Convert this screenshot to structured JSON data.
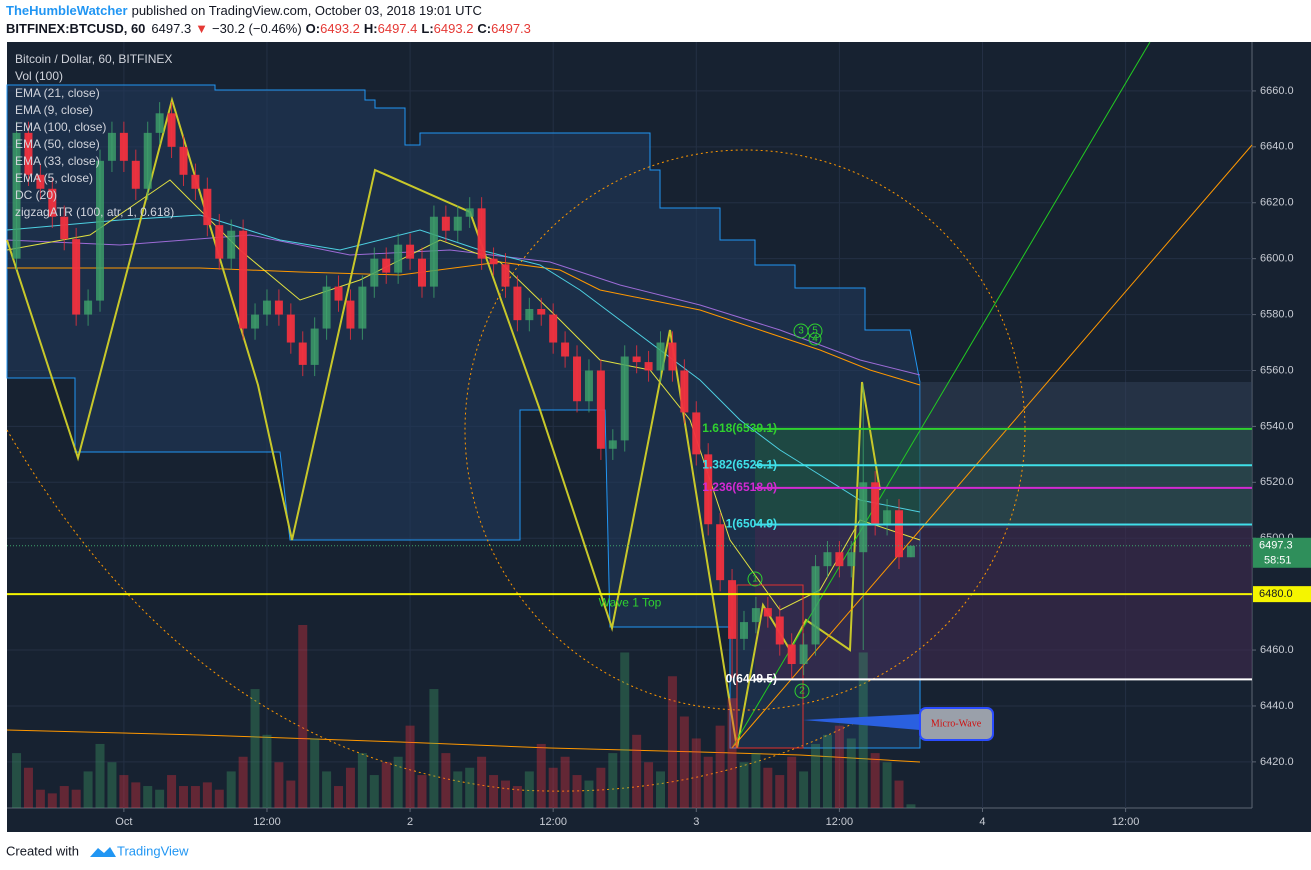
{
  "header": {
    "author": "TheHumbleWatcher",
    "published": "published on TradingView.com, October 03, 2018 19:01 UTC",
    "symbol": "BITFINEX:BTCUSD, 60",
    "last": 6497.3,
    "arrow": "▼",
    "change": "−30.2 (−0.46%)",
    "quote": [
      {
        "key": "O:",
        "value": 6493.2
      },
      {
        "key": "H:",
        "value": 6497.4
      },
      {
        "key": "L:",
        "value": 6493.2
      },
      {
        "key": "C:",
        "value": 6497.3
      }
    ]
  },
  "legend": [
    "Bitcoin / Dollar, 60, BITFINEX",
    "Vol (100)",
    "EMA (21, close)",
    "EMA (9, close)",
    "EMA (100, close)",
    "EMA (50, close)",
    "EMA (33, close)",
    "EMA (5, close)",
    "DC (20)",
    "zigzagATR (100, atr, 1, 0.618)"
  ],
  "chart_data": {
    "type": "candlestick",
    "up_color": "#3fa36b",
    "down_color": "#f0313f",
    "grid": true,
    "xlim": [
      -9.8,
      94.6
    ],
    "ylim": [
      6403.5,
      6677.5
    ],
    "xticks": [
      {
        "value": 0,
        "label": "Oct"
      },
      {
        "value": 12,
        "label": "12:00"
      },
      {
        "value": 24,
        "label": "2"
      },
      {
        "value": 36,
        "label": "12:00"
      },
      {
        "value": 48,
        "label": "3"
      },
      {
        "value": 60,
        "label": "12:00"
      },
      {
        "value": 72,
        "label": "4"
      },
      {
        "value": 84,
        "label": "12:00"
      }
    ],
    "yticks": [
      {
        "value": 6420,
        "label": "6420.0"
      },
      {
        "value": 6440,
        "label": "6440.0"
      },
      {
        "value": 6460,
        "label": "6460.0"
      },
      {
        "value": 6480,
        "label": "6480.0"
      },
      {
        "value": 6500,
        "label": "6500.0"
      },
      {
        "value": 6520,
        "label": "6520.0"
      },
      {
        "value": 6540,
        "label": "6540.0"
      },
      {
        "value": 6560,
        "label": "6560.0"
      },
      {
        "value": 6580,
        "label": "6580.0"
      },
      {
        "value": 6600,
        "label": "6600.0"
      },
      {
        "value": 6620,
        "label": "6620.0"
      },
      {
        "value": 6640,
        "label": "6640.0"
      },
      {
        "value": 6660,
        "label": "6660.0"
      }
    ],
    "candles": {
      "x": [
        -9,
        -8,
        -7,
        -6,
        -5,
        -4,
        -3,
        -2,
        -1,
        0,
        1,
        2,
        3,
        4,
        5,
        6,
        7,
        8,
        9,
        10,
        11,
        12,
        13,
        14,
        15,
        16,
        17,
        18,
        19,
        20,
        21,
        22,
        23,
        24,
        25,
        26,
        27,
        28,
        29,
        30,
        31,
        32,
        33,
        34,
        35,
        36,
        37,
        38,
        39,
        40,
        41,
        42,
        43,
        44,
        45,
        46,
        47,
        48,
        49,
        50,
        51,
        52,
        53,
        54,
        55,
        56,
        57,
        58,
        59,
        60,
        61,
        62,
        63,
        64,
        65,
        66
      ],
      "open": [
        6600,
        6645,
        6630,
        6625,
        6615,
        6607,
        6580,
        6585,
        6635,
        6645,
        6635,
        6625,
        6645,
        6652,
        6640,
        6630,
        6625,
        6612,
        6600,
        6610,
        6575,
        6580,
        6585,
        6580,
        6570,
        6562,
        6575,
        6590,
        6585,
        6575,
        6590,
        6600,
        6595,
        6605,
        6600,
        6590,
        6615,
        6610,
        6615,
        6618,
        6600,
        6598,
        6590,
        6578,
        6582,
        6580,
        6570,
        6565,
        6549,
        6560,
        6532,
        6535,
        6565,
        6563,
        6560,
        6570,
        6560,
        6545,
        6530,
        6505,
        6485,
        6464,
        6470,
        6475,
        6472,
        6462,
        6455,
        6462,
        6490,
        6495,
        6490,
        6495,
        6520,
        6505,
        6510,
        6493.2
      ],
      "high": [
        6649,
        6649,
        6634,
        6629,
        6619,
        6611,
        6589,
        6639,
        6649,
        6649,
        6639,
        6649,
        6656,
        6656,
        6644,
        6634,
        6629,
        6616,
        6614,
        6614,
        6584,
        6589,
        6589,
        6584,
        6574,
        6579,
        6594,
        6594,
        6589,
        6594,
        6604,
        6604,
        6609,
        6609,
        6604,
        6619,
        6619,
        6619,
        6622,
        6622,
        6604,
        6602,
        6594,
        6586,
        6586,
        6584,
        6574,
        6569,
        6564,
        6564,
        6539,
        6569,
        6569,
        6567,
        6574,
        6574,
        6564,
        6549,
        6534,
        6509,
        6489,
        6474,
        6479,
        6479,
        6476,
        6466,
        6466,
        6494,
        6499,
        6499,
        6499,
        6555,
        6524,
        6514,
        6514,
        6497.4
      ],
      "low": [
        6596,
        6626,
        6621,
        6611,
        6603,
        6576,
        6576,
        6581,
        6631,
        6631,
        6621,
        6621,
        6641,
        6636,
        6626,
        6621,
        6608,
        6596,
        6596,
        6571,
        6571,
        6576,
        6576,
        6566,
        6558,
        6558,
        6571,
        6581,
        6571,
        6571,
        6586,
        6591,
        6591,
        6596,
        6586,
        6586,
        6606,
        6606,
        6611,
        6596,
        6594,
        6586,
        6574,
        6574,
        6576,
        6566,
        6561,
        6545,
        6545,
        6528,
        6528,
        6531,
        6559,
        6556,
        6556,
        6556,
        6541,
        6526,
        6501,
        6481,
        6450,
        6460,
        6466,
        6468,
        6458,
        6450,
        6451,
        6458,
        6486,
        6486,
        6486,
        6460,
        6501,
        6501,
        6489,
        6493.2
      ],
      "close": [
        6645,
        6630,
        6625,
        6615,
        6607,
        6580,
        6585,
        6635,
        6645,
        6635,
        6625,
        6645,
        6652,
        6640,
        6630,
        6625,
        6612,
        6600,
        6610,
        6575,
        6580,
        6585,
        6580,
        6570,
        6562,
        6575,
        6590,
        6585,
        6575,
        6590,
        6600,
        6595,
        6605,
        6600,
        6590,
        6615,
        6610,
        6615,
        6618,
        6600,
        6598,
        6590,
        6578,
        6582,
        6580,
        6570,
        6565,
        6549,
        6560,
        6532,
        6535,
        6565,
        6563,
        6560,
        6570,
        6560,
        6545,
        6530,
        6505,
        6485,
        6464,
        6470,
        6475,
        6472,
        6462,
        6455,
        6462,
        6490,
        6495,
        6490,
        6495,
        6520,
        6505,
        6510,
        6493.2,
        6497.3
      ],
      "volume": [
        30,
        22,
        10,
        8,
        12,
        10,
        20,
        35,
        25,
        18,
        14,
        12,
        10,
        18,
        12,
        12,
        14,
        10,
        20,
        28,
        65,
        40,
        25,
        15,
        100,
        38,
        20,
        12,
        22,
        30,
        18,
        25,
        28,
        45,
        18,
        65,
        30,
        20,
        22,
        28,
        18,
        15,
        12,
        20,
        35,
        22,
        28,
        18,
        15,
        22,
        30,
        85,
        40,
        25,
        20,
        72,
        50,
        38,
        28,
        45,
        60,
        25,
        30,
        22,
        18,
        28,
        20,
        35,
        40,
        45,
        38,
        85,
        30,
        25,
        15,
        2
      ]
    },
    "levels": [
      {
        "value": 6539.1,
        "label": "1.618(6539.1)",
        "color": "#2fd12f"
      },
      {
        "value": 6526.1,
        "label": "1.382(6526.1)",
        "color": "#3fe0e8"
      },
      {
        "value": 6518,
        "label": "1.236(6518.0)",
        "color": "#d22ad2"
      },
      {
        "value": 6504.9,
        "label": "1(6504.9)",
        "color": "#3fe0e8"
      },
      {
        "value": 6449.5,
        "label": "0(6449.5)",
        "color": "#ffffff"
      }
    ],
    "hline": {
      "value": 6480,
      "label": "6480.0",
      "text": "Wave 1 Top",
      "color": "#f5f500"
    },
    "last_price": 6497.3,
    "countdown": "58:51",
    "wave_marks": [
      "1",
      "2",
      "3",
      "5",
      "4"
    ],
    "callout": "Micro-Wave"
  },
  "footer": {
    "created": "Created with",
    "brand": "TradingView"
  }
}
